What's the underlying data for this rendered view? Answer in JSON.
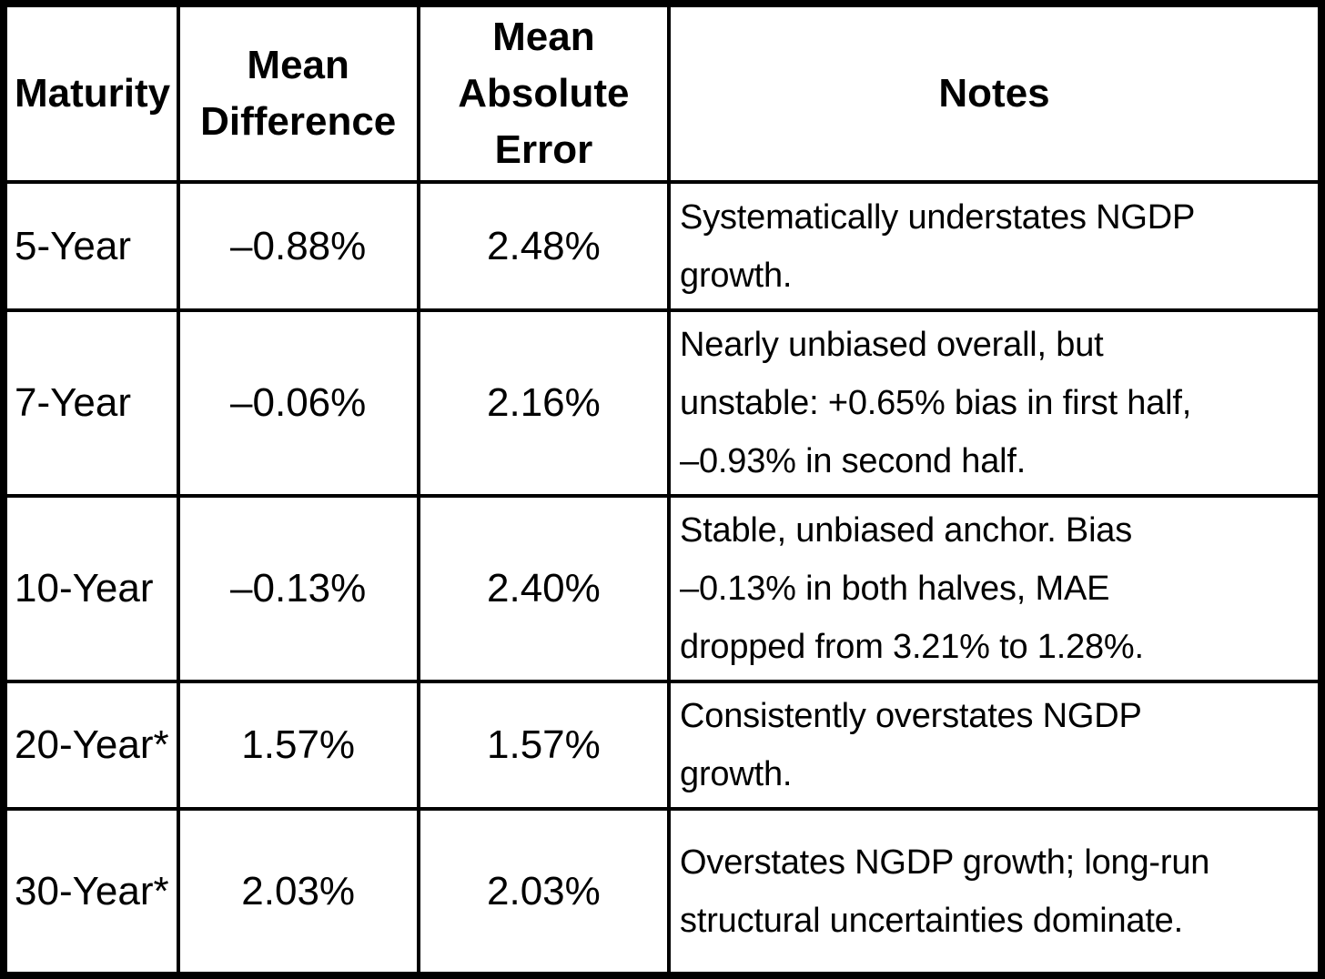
{
  "table": {
    "headers": [
      "Maturity",
      "Mean Difference",
      "Mean Absolute Error",
      "Notes"
    ],
    "rows": [
      {
        "maturity": "5-Year",
        "mean_difference": "–0.88%",
        "mean_absolute_error": "2.48%",
        "notes_lines": [
          "Systematically understates NGDP",
          "growth."
        ]
      },
      {
        "maturity": "7-Year",
        "mean_difference": "–0.06%",
        "mean_absolute_error": "2.16%",
        "notes_lines": [
          "Nearly unbiased overall, but",
          "unstable: +0.65% bias in first half,",
          "–0.93% in second half."
        ]
      },
      {
        "maturity": "10-Year",
        "mean_difference": "–0.13%",
        "mean_absolute_error": "2.40%",
        "notes_lines": [
          "Stable, unbiased anchor. Bias",
          "–0.13% in both halves, MAE",
          "dropped from 3.21% to 1.28%."
        ]
      },
      {
        "maturity": "20-Year*",
        "mean_difference": "1.57%",
        "mean_absolute_error": "1.57%",
        "notes_lines": [
          "Consistently overstates NGDP",
          "growth."
        ]
      },
      {
        "maturity": "30-Year*",
        "mean_difference": "2.03%",
        "mean_absolute_error": "2.03%",
        "notes_lines": [
          "Overstates NGDP growth; long-run",
          "structural uncertainties dominate."
        ]
      }
    ],
    "colors": {
      "border": "#000000",
      "text": "#000000",
      "background": "#ffffff"
    }
  }
}
